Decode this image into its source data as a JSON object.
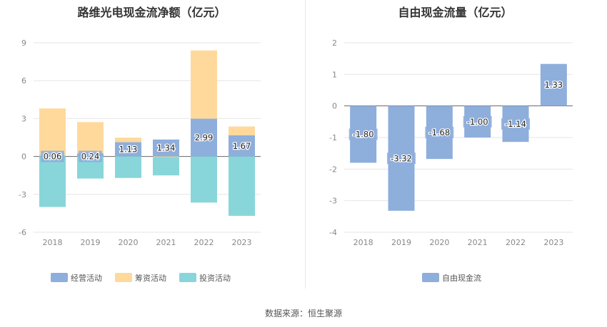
{
  "source_text": "数据来源：恒生聚源",
  "colors": {
    "operating": "#8eaedc",
    "financing": "#ffd99c",
    "investing": "#88d6d9",
    "fcf": "#8eaedc",
    "grid": "#e6e6e6",
    "zero": "#666666",
    "axis_text": "#888888"
  },
  "chart_data": [
    {
      "type": "bar",
      "stacked": true,
      "title": "路维光电现金流净额（亿元）",
      "categories": [
        "2018",
        "2019",
        "2020",
        "2021",
        "2022",
        "2023"
      ],
      "ylim": [
        -6,
        9
      ],
      "yticks": [
        -6,
        -3,
        0,
        3,
        6,
        9
      ],
      "grid": true,
      "legend_position": "bottom",
      "series": [
        {
          "name": "经营活动",
          "values": [
            0.06,
            0.24,
            1.13,
            1.34,
            2.99,
            1.67
          ],
          "labels": [
            "0.06",
            "0.24",
            "1.13",
            "1.34",
            "2.99",
            "1.67"
          ]
        },
        {
          "name": "筹资活动",
          "values": [
            3.74,
            2.48,
            0.36,
            -0.05,
            5.4,
            0.7
          ]
        },
        {
          "name": "投资活动",
          "values": [
            -4.0,
            -1.75,
            -1.7,
            -1.45,
            -3.65,
            -4.7
          ]
        }
      ]
    },
    {
      "type": "bar",
      "title": "自由现金流量（亿元）",
      "categories": [
        "2018",
        "2019",
        "2020",
        "2021",
        "2022",
        "2023"
      ],
      "ylim": [
        -4,
        2
      ],
      "yticks": [
        -4,
        -3,
        -2,
        -1,
        0,
        1,
        2
      ],
      "grid": true,
      "legend_position": "bottom",
      "series": [
        {
          "name": "自由现金流",
          "values": [
            -1.8,
            -3.32,
            -1.68,
            -1.0,
            -1.14,
            1.33
          ],
          "labels": [
            "-1.80",
            "-3.32",
            "-1.68",
            "-1.00",
            "-1.14",
            "1.33"
          ]
        }
      ]
    }
  ]
}
